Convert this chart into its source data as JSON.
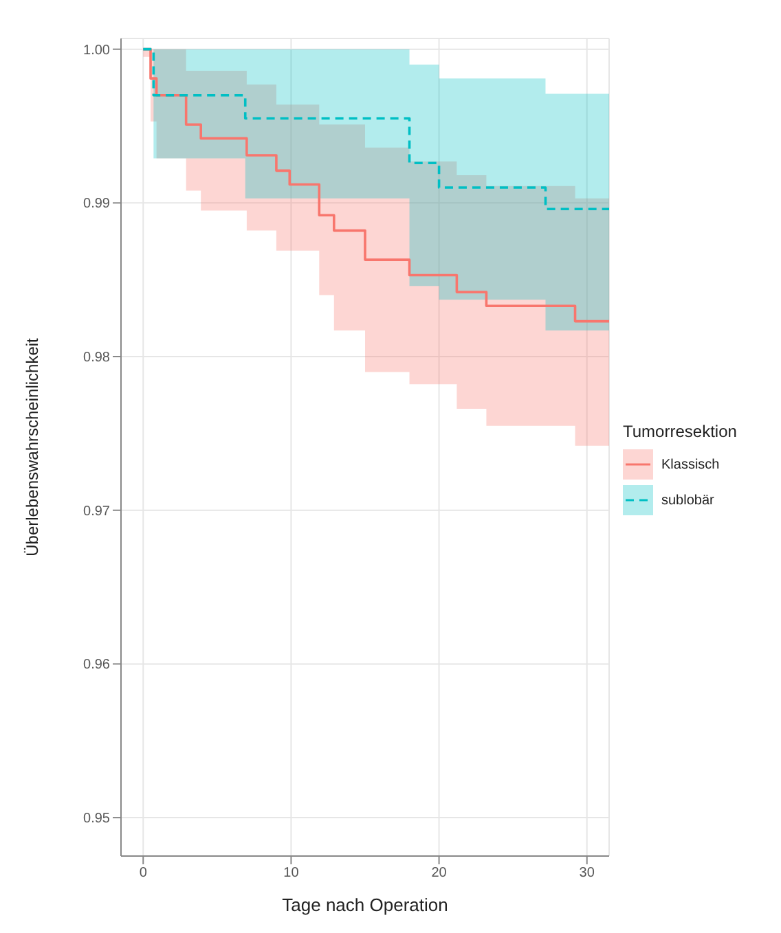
{
  "chart_data": {
    "type": "step",
    "xlabel": "Tage nach Operation",
    "ylabel": "Überlebenswahrscheinlichkeit",
    "legend_title": "Tumorresektion",
    "legend": "right",
    "grid": true,
    "xlim": [
      -1.5,
      31.5
    ],
    "xticks": [
      0,
      10,
      20,
      30
    ],
    "ylim": [
      0.9475,
      1.0007
    ],
    "yticks": [
      {
        "value": 0.95,
        "label": "0.95"
      },
      {
        "value": 0.96,
        "label": "0.96"
      },
      {
        "value": 0.97,
        "label": "0.97"
      },
      {
        "value": 0.98,
        "label": "0.98"
      },
      {
        "value": 0.99,
        "label": "0.99"
      },
      {
        "value": 1.0,
        "label": "1.00"
      }
    ],
    "series": [
      {
        "name": "Klassisch",
        "color": "#f8766d",
        "line_style": "solid",
        "x": [
          0,
          0.5,
          0.9,
          2.9,
          3.9,
          7,
          9,
          9.9,
          11.9,
          12.9,
          15,
          18,
          21.2,
          23.2,
          29.2,
          31.5
        ],
        "values": [
          1.0,
          0.9981,
          0.997,
          0.9951,
          0.9942,
          0.9931,
          0.9921,
          0.9912,
          0.9892,
          0.9882,
          0.9863,
          0.9853,
          0.9842,
          0.9833,
          0.9823,
          0.9823
        ],
        "lower": [
          0.9995,
          0.9953,
          0.9929,
          0.9908,
          0.9895,
          0.9882,
          0.9869,
          0.9869,
          0.984,
          0.9817,
          0.979,
          0.9782,
          0.9766,
          0.9755,
          0.9742,
          0.9742
        ],
        "upper": [
          1.0,
          1.0,
          1.0,
          0.9986,
          0.9986,
          0.9977,
          0.9964,
          0.9964,
          0.9951,
          0.9951,
          0.9936,
          0.9927,
          0.9918,
          0.9911,
          0.9903,
          0.9903
        ]
      },
      {
        "name": "sublobär",
        "color": "#00bfc4",
        "line_style": "dashed",
        "x": [
          0,
          0.7,
          6.9,
          18,
          20,
          27.2,
          31.5
        ],
        "values": [
          1.0,
          0.997,
          0.9955,
          0.9926,
          0.991,
          0.9896,
          0.9896
        ],
        "lower": [
          1.0,
          0.9929,
          0.9903,
          0.9846,
          0.9837,
          0.9817,
          0.9817
        ],
        "upper": [
          1.0,
          1.0,
          1.0,
          0.999,
          0.9981,
          0.9971,
          0.9971
        ]
      }
    ]
  }
}
